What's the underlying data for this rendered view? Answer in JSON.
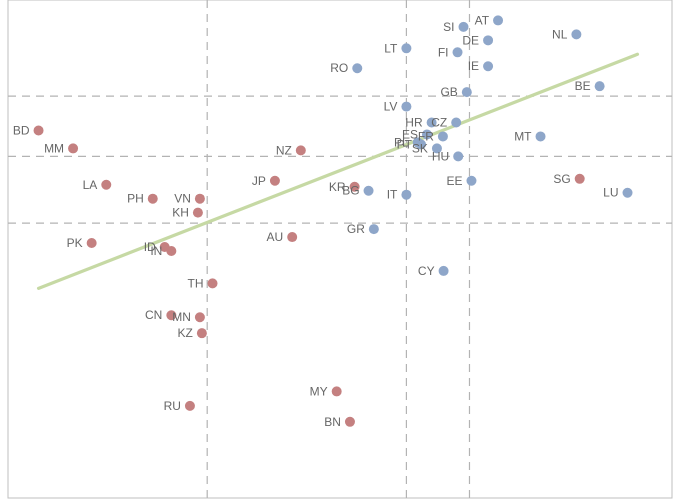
{
  "chart_data": {
    "type": "scatter",
    "title": "",
    "xlabel": "",
    "ylabel": "",
    "xlim": [
      0,
      100
    ],
    "ylim": [
      0,
      100
    ],
    "grid": "dashed reference lines",
    "legend": "none",
    "vlines": [
      30,
      60,
      69.5
    ],
    "hlines": [
      80.7,
      68.6,
      55.2
    ],
    "trendline": {
      "x": [
        4.6,
        94.8
      ],
      "y": [
        42.1,
        89.1
      ],
      "color": "#c6d9a4"
    },
    "series": [
      {
        "color": "#8ea6c9",
        "points": [
          {
            "label": "AT",
            "x": 73.8,
            "y": 95.9
          },
          {
            "label": "SI",
            "x": 68.6,
            "y": 94.6
          },
          {
            "label": "NL",
            "x": 85.6,
            "y": 93.1
          },
          {
            "label": "DE",
            "x": 72.3,
            "y": 91.9
          },
          {
            "label": "LT",
            "x": 60.0,
            "y": 90.3
          },
          {
            "label": "FI",
            "x": 67.7,
            "y": 89.5
          },
          {
            "label": "IE",
            "x": 72.3,
            "y": 86.7
          },
          {
            "label": "RO",
            "x": 52.6,
            "y": 86.3
          },
          {
            "label": "BE",
            "x": 89.1,
            "y": 82.7
          },
          {
            "label": "GB",
            "x": 69.1,
            "y": 81.5
          },
          {
            "label": "LV",
            "x": 60.0,
            "y": 78.6
          },
          {
            "label": "HR",
            "x": 63.8,
            "y": 75.4
          },
          {
            "label": "CZ",
            "x": 67.5,
            "y": 75.4
          },
          {
            "label": "MT",
            "x": 80.2,
            "y": 72.6
          },
          {
            "label": "ES",
            "x": 63.1,
            "y": 73.0
          },
          {
            "label": "FR",
            "x": 65.5,
            "y": 72.6
          },
          {
            "label": "PL",
            "x": 61.7,
            "y": 71.4
          },
          {
            "label": "PT",
            "x": 62.2,
            "y": 71.0
          },
          {
            "label": "SK",
            "x": 64.6,
            "y": 70.2
          },
          {
            "label": "HU",
            "x": 67.8,
            "y": 68.6
          },
          {
            "label": "EE",
            "x": 69.8,
            "y": 63.7
          },
          {
            "label": "LU",
            "x": 93.3,
            "y": 61.3
          },
          {
            "label": "BG",
            "x": 54.3,
            "y": 61.7
          },
          {
            "label": "IT",
            "x": 60.0,
            "y": 60.9
          },
          {
            "label": "GR",
            "x": 55.1,
            "y": 54.0
          },
          {
            "label": "CY",
            "x": 65.6,
            "y": 45.6
          }
        ]
      },
      {
        "color": "#c48080",
        "points": [
          {
            "label": "BD",
            "x": 4.6,
            "y": 73.8
          },
          {
            "label": "MM",
            "x": 9.8,
            "y": 70.2
          },
          {
            "label": "NZ",
            "x": 44.1,
            "y": 69.8
          },
          {
            "label": "SG",
            "x": 86.1,
            "y": 64.1
          },
          {
            "label": "JP",
            "x": 40.2,
            "y": 63.7
          },
          {
            "label": "LA",
            "x": 14.8,
            "y": 62.9
          },
          {
            "label": "KR",
            "x": 52.2,
            "y": 62.5
          },
          {
            "label": "PH",
            "x": 21.8,
            "y": 60.1
          },
          {
            "label": "VN",
            "x": 28.9,
            "y": 60.1
          },
          {
            "label": "KH",
            "x": 28.6,
            "y": 57.3
          },
          {
            "label": "AU",
            "x": 42.8,
            "y": 52.4
          },
          {
            "label": "PK",
            "x": 12.6,
            "y": 51.2
          },
          {
            "label": "ID",
            "x": 23.6,
            "y": 50.4
          },
          {
            "label": "IN",
            "x": 24.6,
            "y": 49.6
          },
          {
            "label": "TH",
            "x": 30.8,
            "y": 43.1
          },
          {
            "label": "CN",
            "x": 24.6,
            "y": 36.7
          },
          {
            "label": "MN",
            "x": 28.9,
            "y": 36.3
          },
          {
            "label": "KZ",
            "x": 29.2,
            "y": 33.1
          },
          {
            "label": "MY",
            "x": 49.5,
            "y": 21.4
          },
          {
            "label": "RU",
            "x": 27.4,
            "y": 18.5
          },
          {
            "label": "BN",
            "x": 51.5,
            "y": 15.3
          }
        ]
      }
    ]
  }
}
